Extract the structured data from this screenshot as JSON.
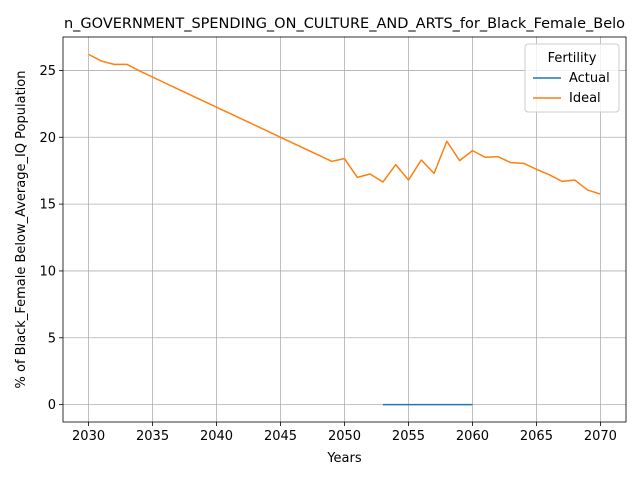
{
  "chart_data": {
    "type": "line",
    "title": "n_GOVERNMENT_SPENDING_ON_CULTURE_AND_ARTS_for_Black_Female_Belo",
    "xlabel": "Years",
    "ylabel": "% of Black_Female Below_Average_IQ Population",
    "xlim": [
      2028,
      2072
    ],
    "ylim": [
      -1.3,
      27.5
    ],
    "xticks": [
      2030,
      2035,
      2040,
      2045,
      2050,
      2055,
      2060,
      2065,
      2070
    ],
    "yticks": [
      0,
      5,
      10,
      15,
      20,
      25
    ],
    "grid": true,
    "legend": {
      "title": "Fertility",
      "placement": "top-right"
    },
    "series": [
      {
        "name": "Actual",
        "color": "#1f77b4",
        "x": [
          2053,
          2054,
          2055,
          2056,
          2057,
          2058,
          2059,
          2060
        ],
        "y": [
          0,
          0,
          0,
          0,
          0,
          0,
          0,
          0
        ]
      },
      {
        "name": "Ideal",
        "color": "#ff7f0e",
        "x": [
          2030,
          2031,
          2032,
          2033,
          2034,
          2035,
          2036,
          2037,
          2038,
          2039,
          2040,
          2041,
          2042,
          2043,
          2044,
          2045,
          2046,
          2047,
          2048,
          2049,
          2050,
          2051,
          2052,
          2053,
          2054,
          2055,
          2056,
          2057,
          2058,
          2059,
          2060,
          2061,
          2062,
          2063,
          2064,
          2065,
          2066,
          2067,
          2068,
          2069,
          2070
        ],
        "y": [
          26.2,
          25.7,
          25.45,
          25.45,
          24.95,
          24.5,
          24.05,
          23.6,
          23.15,
          22.7,
          22.25,
          21.8,
          21.35,
          20.9,
          20.45,
          20.0,
          19.55,
          19.1,
          18.65,
          18.2,
          18.4,
          17.0,
          17.25,
          16.65,
          17.95,
          16.8,
          18.3,
          17.3,
          19.7,
          18.25,
          19.0,
          18.5,
          18.55,
          18.1,
          18.05,
          17.6,
          17.2,
          16.7,
          16.8,
          16.05,
          15.75
        ]
      }
    ]
  }
}
